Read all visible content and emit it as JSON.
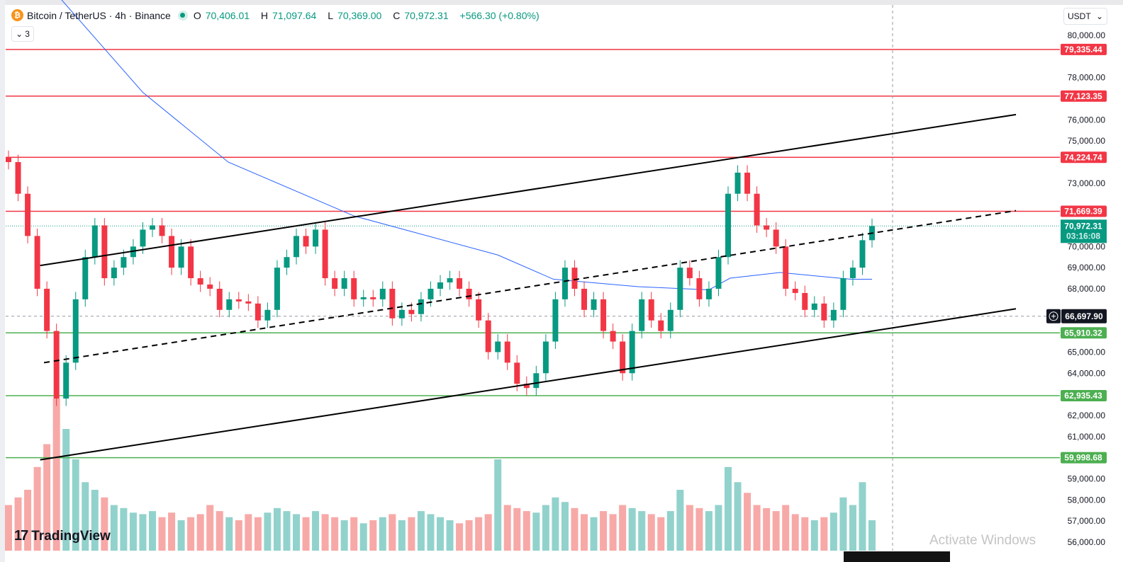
{
  "header": {
    "symbol": "Bitcoin / TetherUS · 4h · Binance",
    "coin_icon": "bitcoin-icon",
    "ohlc": {
      "o_label": "O",
      "o": "70,406.01",
      "h_label": "H",
      "h": "71,097.64",
      "l_label": "L",
      "l": "70,369.00",
      "c_label": "C",
      "c": "70,972.31",
      "change": "+566.30 (+0.80%)"
    },
    "indicators_collapsed": "3",
    "currency": "USDT"
  },
  "logo": "TradingView",
  "watermark": "Activate Windows",
  "colors": {
    "up": "#089981",
    "down": "#f23645",
    "volume_up": "#92d2cc",
    "volume_down": "#f7a9a7",
    "ma": "#2962ff",
    "resistance": "#f23645",
    "support": "#4caf50",
    "trendline": "#000000"
  },
  "chart_data": {
    "type": "candlestick",
    "ylim": [
      55800,
      81000
    ],
    "y_ticks": [
      "80,000.00",
      "79,000.00",
      "78,000.00",
      "77,000.00",
      "76,000.00",
      "75,000.00",
      "74,000.00",
      "73,000.00",
      "72,000.00",
      "71,000.00",
      "70,000.00",
      "69,000.00",
      "68,000.00",
      "67,000.00",
      "66,000.00",
      "65,000.00",
      "64,000.00",
      "63,000.00",
      "62,000.00",
      "61,000.00",
      "60,000.00",
      "59,000.00",
      "58,000.00",
      "57,000.00",
      "56,000.00"
    ],
    "first_open": 74200,
    "closes": [
      74000,
      72500,
      70500,
      68000,
      66000,
      62800,
      64500,
      67500,
      69500,
      71000,
      68500,
      69000,
      69500,
      70000,
      70800,
      71000,
      70500,
      69000,
      70000,
      68500,
      68200,
      68000,
      67000,
      67500,
      67400,
      67300,
      66500,
      67000,
      69000,
      69500,
      70500,
      70000,
      70800,
      68500,
      68000,
      68500,
      67500,
      67600,
      67500,
      68000,
      66600,
      67000,
      66800,
      67500,
      68000,
      68300,
      68500,
      68000,
      67500,
      66500,
      65000,
      65500,
      64500,
      63500,
      63300,
      64000,
      65500,
      67500,
      69000,
      68000,
      67000,
      67500,
      66000,
      65500,
      64000,
      66000,
      67500,
      66500,
      66000,
      67000,
      69000,
      68500,
      67500,
      68000,
      69500,
      72500,
      73500,
      72500,
      71000,
      70800,
      70000,
      68000,
      67800,
      67000,
      67300,
      66500,
      67000,
      68500,
      69000,
      70300,
      70972.31
    ],
    "volumes": [
      30,
      35,
      40,
      55,
      70,
      100,
      80,
      60,
      45,
      40,
      35,
      30,
      28,
      25,
      24,
      26,
      22,
      25,
      20,
      22,
      24,
      30,
      26,
      22,
      20,
      24,
      22,
      25,
      28,
      26,
      24,
      22,
      26,
      24,
      22,
      20,
      22,
      18,
      20,
      22,
      24,
      20,
      22,
      26,
      24,
      22,
      20,
      18,
      20,
      22,
      24,
      60,
      30,
      28,
      26,
      25,
      30,
      35,
      32,
      28,
      24,
      22,
      26,
      24,
      30,
      28,
      26,
      24,
      22,
      26,
      40,
      30,
      28,
      26,
      30,
      55,
      45,
      38,
      30,
      28,
      26,
      30,
      24,
      22,
      20,
      22,
      25,
      35,
      30,
      45,
      20
    ],
    "ma": [
      {
        "i": 5.5,
        "v": 81700
      },
      {
        "i": 14,
        "v": 77300
      },
      {
        "i": 22.9,
        "v": 74000
      },
      {
        "i": 36,
        "v": 71450
      },
      {
        "i": 51,
        "v": 69600
      },
      {
        "i": 56.8,
        "v": 68450
      },
      {
        "i": 65.6,
        "v": 68100
      },
      {
        "i": 73,
        "v": 67950
      },
      {
        "i": 75.2,
        "v": 68500
      },
      {
        "i": 80.4,
        "v": 68770
      },
      {
        "i": 87.8,
        "v": 68450
      },
      {
        "i": 90,
        "v": 68450
      }
    ],
    "horizontal_levels": [
      {
        "price": 79335.44,
        "label": "79,335.44",
        "kind": "resistance"
      },
      {
        "price": 77123.35,
        "label": "77,123.35",
        "kind": "resistance"
      },
      {
        "price": 74224.74,
        "label": "74,224.74",
        "kind": "resistance"
      },
      {
        "price": 71669.39,
        "label": "71,669.39",
        "kind": "resistance"
      },
      {
        "price": 65910.32,
        "label": "65,910.32",
        "kind": "support"
      },
      {
        "price": 62935.43,
        "label": "62,935.43",
        "kind": "support"
      },
      {
        "price": 59998.68,
        "label": "59,998.68",
        "kind": "support"
      }
    ],
    "trendlines": [
      {
        "name": "upper-channel",
        "from": {
          "i": 3.3,
          "v": 69100
        },
        "to": {
          "i": 105,
          "v": 76250
        },
        "style": "solid"
      },
      {
        "name": "mid-channel",
        "from": {
          "i": 3.7,
          "v": 64500
        },
        "to": {
          "i": 105,
          "v": 71700
        },
        "style": "dashed"
      },
      {
        "name": "lower-channel",
        "from": {
          "i": 3.3,
          "v": 59900
        },
        "to": {
          "i": 105,
          "v": 67050
        },
        "style": "solid"
      }
    ],
    "last_price": {
      "price": 70972.31,
      "label": "70,972.31",
      "countdown": "03:16:08"
    },
    "crosshair": {
      "price": 66697.9,
      "label": "66,697.90"
    }
  }
}
